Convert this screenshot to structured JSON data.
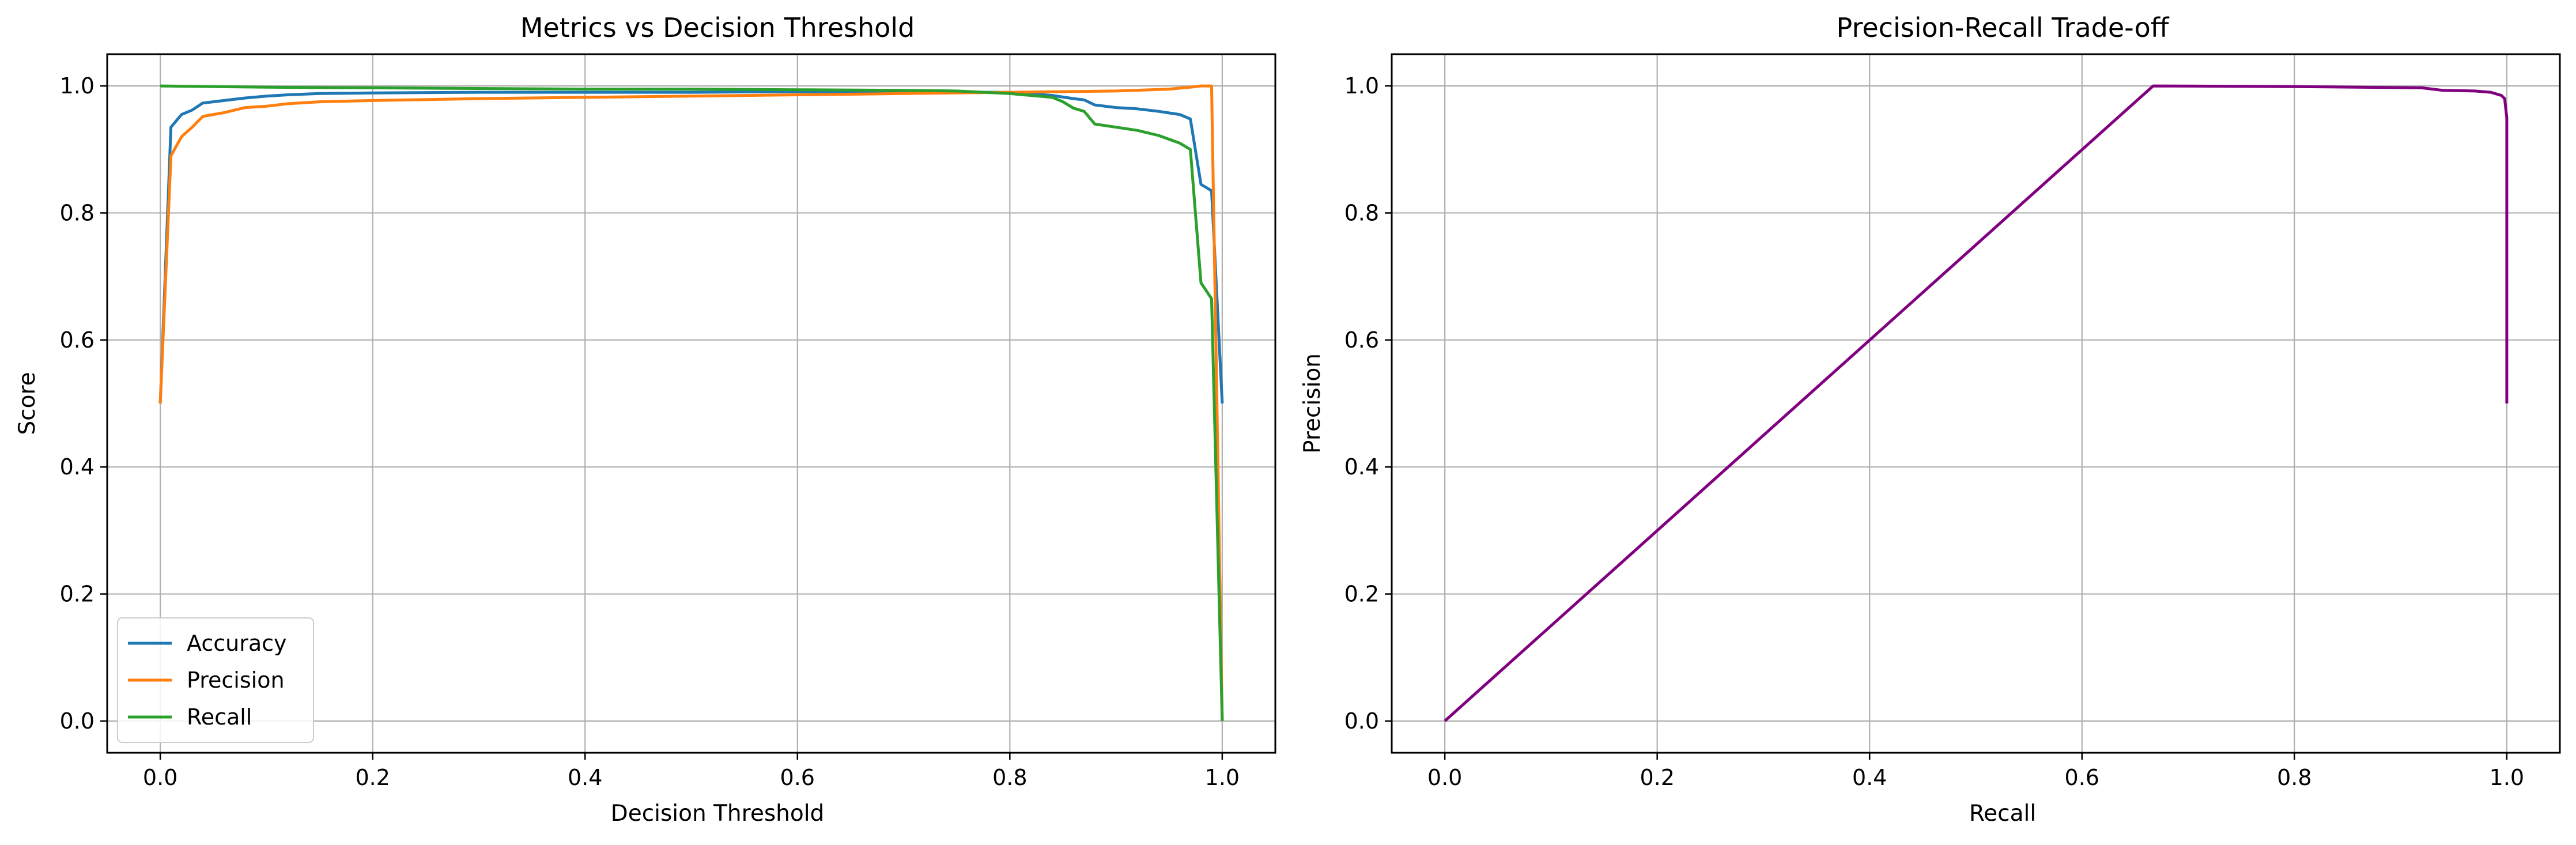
{
  "figure": {
    "background": "#ffffff"
  },
  "chart_data": [
    {
      "type": "line",
      "title": "Metrics vs Decision Threshold",
      "xlabel": "Decision Threshold",
      "ylabel": "Score",
      "xlim": [
        -0.05,
        1.05
      ],
      "ylim": [
        -0.05,
        1.05
      ],
      "xticks": [
        "0.0",
        "0.2",
        "0.4",
        "0.6",
        "0.8",
        "1.0"
      ],
      "yticks": [
        "0.0",
        "0.2",
        "0.4",
        "0.6",
        "0.8",
        "1.0"
      ],
      "grid": true,
      "legend": "lower-left",
      "series": [
        {
          "name": "Accuracy",
          "color": "#1f77b4",
          "x": [
            0.0,
            0.01,
            0.02,
            0.03,
            0.04,
            0.06,
            0.08,
            0.1,
            0.12,
            0.15,
            0.2,
            0.3,
            0.4,
            0.5,
            0.6,
            0.7,
            0.8,
            0.84,
            0.86,
            0.87,
            0.88,
            0.9,
            0.92,
            0.94,
            0.96,
            0.97,
            0.98,
            0.99,
            1.0
          ],
          "y": [
            0.5,
            0.935,
            0.955,
            0.962,
            0.973,
            0.977,
            0.981,
            0.984,
            0.986,
            0.988,
            0.989,
            0.99,
            0.99,
            0.99,
            0.991,
            0.99,
            0.99,
            0.985,
            0.98,
            0.978,
            0.97,
            0.966,
            0.964,
            0.96,
            0.955,
            0.948,
            0.845,
            0.835,
            0.5
          ]
        },
        {
          "name": "Precision",
          "color": "#ff7f0e",
          "x": [
            0.0,
            0.01,
            0.02,
            0.03,
            0.04,
            0.06,
            0.08,
            0.1,
            0.12,
            0.15,
            0.2,
            0.3,
            0.4,
            0.5,
            0.6,
            0.7,
            0.8,
            0.9,
            0.95,
            0.97,
            0.98,
            0.99,
            1.0
          ],
          "y": [
            0.5,
            0.89,
            0.92,
            0.935,
            0.952,
            0.958,
            0.966,
            0.968,
            0.972,
            0.975,
            0.977,
            0.98,
            0.982,
            0.984,
            0.986,
            0.988,
            0.99,
            0.992,
            0.995,
            0.998,
            1.0,
            1.0,
            0.0
          ]
        },
        {
          "name": "Recall",
          "color": "#2ca02c",
          "x": [
            0.0,
            0.05,
            0.1,
            0.2,
            0.3,
            0.4,
            0.5,
            0.6,
            0.7,
            0.75,
            0.8,
            0.84,
            0.85,
            0.86,
            0.87,
            0.88,
            0.9,
            0.92,
            0.94,
            0.96,
            0.97,
            0.98,
            0.99,
            1.0
          ],
          "y": [
            1.0,
            0.999,
            0.998,
            0.997,
            0.996,
            0.995,
            0.995,
            0.994,
            0.993,
            0.992,
            0.988,
            0.982,
            0.975,
            0.965,
            0.96,
            0.94,
            0.935,
            0.93,
            0.922,
            0.91,
            0.9,
            0.69,
            0.665,
            0.0
          ]
        }
      ]
    },
    {
      "type": "line",
      "title": "Precision-Recall Trade-off",
      "xlabel": "Recall",
      "ylabel": "Precision",
      "xlim": [
        -0.05,
        1.05
      ],
      "ylim": [
        -0.05,
        1.05
      ],
      "xticks": [
        "0.0",
        "0.2",
        "0.4",
        "0.6",
        "0.8",
        "1.0"
      ],
      "yticks": [
        "0.0",
        "0.2",
        "0.4",
        "0.6",
        "0.8",
        "1.0"
      ],
      "grid": true,
      "series": [
        {
          "color": "#800080",
          "x": [
            0.0,
            0.667,
            0.8,
            0.92,
            0.94,
            0.97,
            0.985,
            0.995,
            0.998,
            1.0,
            1.0
          ],
          "y": [
            0.0,
            1.0,
            0.999,
            0.997,
            0.993,
            0.992,
            0.99,
            0.985,
            0.98,
            0.95,
            0.5
          ]
        }
      ]
    }
  ]
}
